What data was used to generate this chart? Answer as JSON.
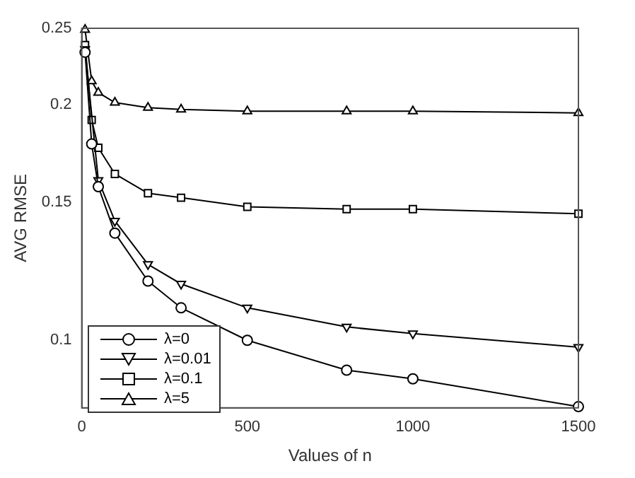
{
  "chart_data": {
    "type": "line",
    "xlabel": "Values of n",
    "ylabel": "AVG RMSE",
    "x": [
      10,
      30,
      50,
      100,
      200,
      300,
      500,
      800,
      1000,
      1500
    ],
    "series": [
      {
        "name": "λ=0",
        "color": "#000000",
        "marker": "circle",
        "values": [
          0.233,
          0.178,
          0.157,
          0.137,
          0.119,
          0.11,
          0.1,
          0.0916,
          0.0893,
          0.0823
        ]
      },
      {
        "name": "λ=0.01",
        "color": "#000000",
        "marker": "triangle-down",
        "values": [
          0.235,
          null,
          0.16,
          0.142,
          0.125,
          0.118,
          0.11,
          0.104,
          0.102,
          0.098
        ]
      },
      {
        "name": "λ=0.1",
        "color": "#000000",
        "marker": "square",
        "values": [
          0.238,
          0.191,
          0.176,
          0.163,
          0.154,
          0.152,
          0.148,
          0.147,
          0.147,
          0.145
        ]
      },
      {
        "name": "λ=5",
        "color": "#000000",
        "marker": "triangle",
        "values": [
          0.249,
          0.214,
          0.207,
          0.201,
          0.198,
          0.197,
          0.196,
          0.196,
          0.196,
          0.195
        ]
      }
    ],
    "xlim": [
      0,
      1500
    ],
    "xticks": [
      0,
      500,
      1000,
      1500
    ],
    "ylim": [
      0.082,
      0.25
    ],
    "yticks": [
      0.1,
      0.15,
      0.2,
      0.25
    ],
    "log": "y",
    "grid": false,
    "legend": "bottom left",
    "line_style": "solid"
  }
}
